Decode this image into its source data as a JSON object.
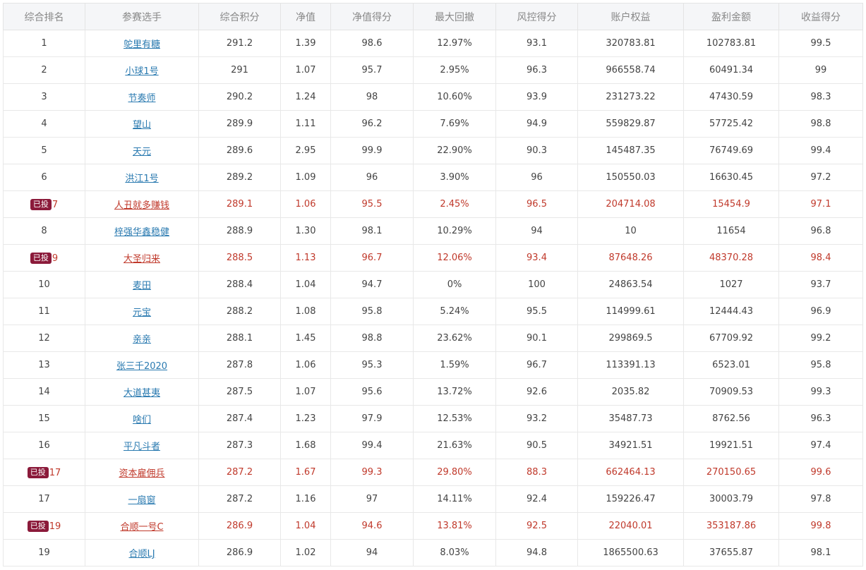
{
  "headers": [
    "综合排名",
    "参赛选手",
    "综合积分",
    "净值",
    "净值得分",
    "最大回撤",
    "风控得分",
    "账户权益",
    "盈利金额",
    "收益得分"
  ],
  "rows": [
    {
      "rank": "1",
      "badge": "",
      "name": "鸵里有糖",
      "score": "291.2",
      "nav": "1.39",
      "nav_score": "98.6",
      "drawdown": "12.97%",
      "risk_score": "93.1",
      "equity": "320783.81",
      "profit": "102783.81",
      "return_score": "99.5",
      "highlight": false
    },
    {
      "rank": "2",
      "badge": "",
      "name": "小球1号",
      "score": "291",
      "nav": "1.07",
      "nav_score": "95.7",
      "drawdown": "2.95%",
      "risk_score": "96.3",
      "equity": "966558.74",
      "profit": "60491.34",
      "return_score": "99",
      "highlight": false
    },
    {
      "rank": "3",
      "badge": "",
      "name": "节奏师",
      "score": "290.2",
      "nav": "1.24",
      "nav_score": "98",
      "drawdown": "10.60%",
      "risk_score": "93.9",
      "equity": "231273.22",
      "profit": "47430.59",
      "return_score": "98.3",
      "highlight": false
    },
    {
      "rank": "4",
      "badge": "",
      "name": "望山",
      "score": "289.9",
      "nav": "1.11",
      "nav_score": "96.2",
      "drawdown": "7.69%",
      "risk_score": "94.9",
      "equity": "559829.87",
      "profit": "57725.42",
      "return_score": "98.8",
      "highlight": false
    },
    {
      "rank": "5",
      "badge": "",
      "name": "天元",
      "score": "289.6",
      "nav": "2.95",
      "nav_score": "99.9",
      "drawdown": "22.90%",
      "risk_score": "90.3",
      "equity": "145487.35",
      "profit": "76749.69",
      "return_score": "99.4",
      "highlight": false
    },
    {
      "rank": "6",
      "badge": "",
      "name": "洪江1号",
      "score": "289.2",
      "nav": "1.09",
      "nav_score": "96",
      "drawdown": "3.90%",
      "risk_score": "96",
      "equity": "150550.03",
      "profit": "16630.45",
      "return_score": "97.2",
      "highlight": false
    },
    {
      "rank": "7",
      "badge": "已投",
      "name": "人丑就多赚钱",
      "score": "289.1",
      "nav": "1.06",
      "nav_score": "95.5",
      "drawdown": "2.45%",
      "risk_score": "96.5",
      "equity": "204714.08",
      "profit": "15454.9",
      "return_score": "97.1",
      "highlight": true
    },
    {
      "rank": "8",
      "badge": "",
      "name": "梓强华鑫稳健",
      "score": "288.9",
      "nav": "1.30",
      "nav_score": "98.1",
      "drawdown": "10.29%",
      "risk_score": "94",
      "equity": "10",
      "profit": "11654",
      "return_score": "96.8",
      "highlight": false
    },
    {
      "rank": "9",
      "badge": "已投",
      "name": "大圣归来",
      "score": "288.5",
      "nav": "1.13",
      "nav_score": "96.7",
      "drawdown": "12.06%",
      "risk_score": "93.4",
      "equity": "87648.26",
      "profit": "48370.28",
      "return_score": "98.4",
      "highlight": true
    },
    {
      "rank": "10",
      "badge": "",
      "name": "麦田",
      "score": "288.4",
      "nav": "1.04",
      "nav_score": "94.7",
      "drawdown": "0%",
      "risk_score": "100",
      "equity": "24863.54",
      "profit": "1027",
      "return_score": "93.7",
      "highlight": false
    },
    {
      "rank": "11",
      "badge": "",
      "name": "元宝",
      "score": "288.2",
      "nav": "1.08",
      "nav_score": "95.8",
      "drawdown": "5.24%",
      "risk_score": "95.5",
      "equity": "114999.61",
      "profit": "12444.43",
      "return_score": "96.9",
      "highlight": false
    },
    {
      "rank": "12",
      "badge": "",
      "name": "亲亲",
      "score": "288.1",
      "nav": "1.45",
      "nav_score": "98.8",
      "drawdown": "23.62%",
      "risk_score": "90.1",
      "equity": "299869.5",
      "profit": "67709.92",
      "return_score": "99.2",
      "highlight": false
    },
    {
      "rank": "13",
      "badge": "",
      "name": "张三千2020",
      "score": "287.8",
      "nav": "1.06",
      "nav_score": "95.3",
      "drawdown": "1.59%",
      "risk_score": "96.7",
      "equity": "113391.13",
      "profit": "6523.01",
      "return_score": "95.8",
      "highlight": false
    },
    {
      "rank": "14",
      "badge": "",
      "name": "大道甚夷",
      "score": "287.5",
      "nav": "1.07",
      "nav_score": "95.6",
      "drawdown": "13.72%",
      "risk_score": "92.6",
      "equity": "2035.82",
      "profit": "70909.53",
      "return_score": "99.3",
      "highlight": false
    },
    {
      "rank": "15",
      "badge": "",
      "name": "啥们",
      "score": "287.4",
      "nav": "1.23",
      "nav_score": "97.9",
      "drawdown": "12.53%",
      "risk_score": "93.2",
      "equity": "35487.73",
      "profit": "8762.56",
      "return_score": "96.3",
      "highlight": false
    },
    {
      "rank": "16",
      "badge": "",
      "name": "平凡斗者",
      "score": "287.3",
      "nav": "1.68",
      "nav_score": "99.4",
      "drawdown": "21.63%",
      "risk_score": "90.5",
      "equity": "34921.51",
      "profit": "19921.51",
      "return_score": "97.4",
      "highlight": false
    },
    {
      "rank": "17",
      "badge": "已投",
      "name": "资本雇佣兵",
      "score": "287.2",
      "nav": "1.67",
      "nav_score": "99.3",
      "drawdown": "29.80%",
      "risk_score": "88.3",
      "equity": "662464.13",
      "profit": "270150.65",
      "return_score": "99.6",
      "highlight": true
    },
    {
      "rank": "17",
      "badge": "",
      "name": "一扇窗",
      "score": "287.2",
      "nav": "1.16",
      "nav_score": "97",
      "drawdown": "14.11%",
      "risk_score": "92.4",
      "equity": "159226.47",
      "profit": "30003.79",
      "return_score": "97.8",
      "highlight": false
    },
    {
      "rank": "19",
      "badge": "已投",
      "name": "合顺一号C",
      "score": "286.9",
      "nav": "1.04",
      "nav_score": "94.6",
      "drawdown": "13.81%",
      "risk_score": "92.5",
      "equity": "22040.01",
      "profit": "353187.86",
      "return_score": "99.8",
      "highlight": true
    },
    {
      "rank": "19",
      "badge": "",
      "name": "合顺LJ",
      "score": "286.9",
      "nav": "1.02",
      "nav_score": "94",
      "drawdown": "8.03%",
      "risk_score": "94.8",
      "equity": "1865500.63",
      "profit": "37655.87",
      "return_score": "98.1",
      "highlight": false
    }
  ],
  "colors": {
    "highlight_text": "#c0392b",
    "badge_bg": "#8b1a3a",
    "link": "#2a7ab0",
    "header_bg": "#f5f6f8"
  }
}
